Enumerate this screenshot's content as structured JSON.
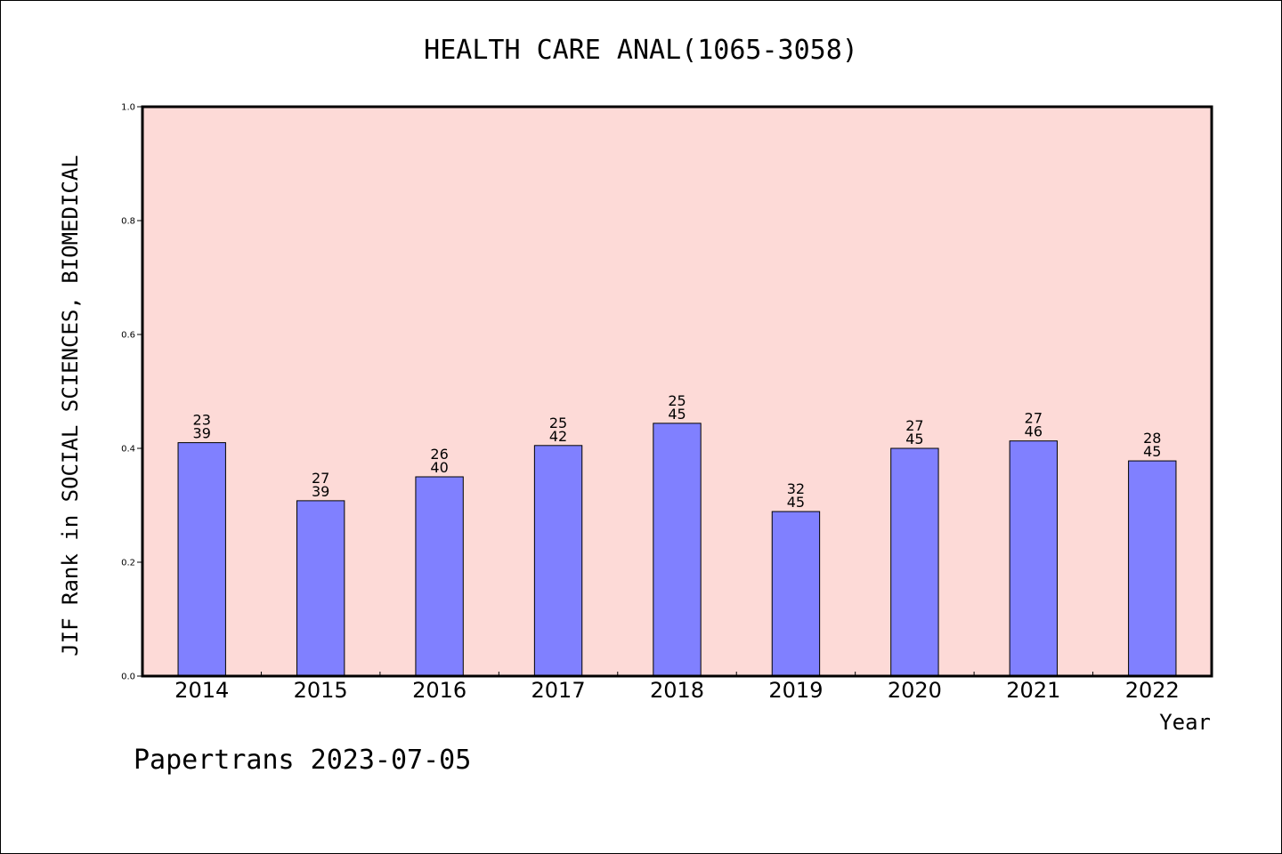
{
  "chart_data": {
    "type": "bar",
    "title": "HEALTH CARE ANAL(1065-3058)",
    "xlabel": "Year",
    "ylabel": "JIF Rank in SOCIAL SCIENCES, BIOMEDICAL",
    "ylim": [
      0,
      1.0
    ],
    "yticks": [
      "0.0",
      "0.2",
      "0.4",
      "0.6",
      "0.8",
      "1.0"
    ],
    "categories": [
      "2014",
      "2015",
      "2016",
      "2017",
      "2018",
      "2019",
      "2020",
      "2021",
      "2022"
    ],
    "values": [
      0.41,
      0.308,
      0.35,
      0.405,
      0.444,
      0.289,
      0.4,
      0.413,
      0.378
    ],
    "rank": [
      "23",
      "27",
      "26",
      "25",
      "25",
      "32",
      "27",
      "27",
      "28"
    ],
    "total": [
      "39",
      "39",
      "40",
      "42",
      "45",
      "45",
      "45",
      "46",
      "45"
    ],
    "grid": false,
    "colors": {
      "bar": "#8080ff",
      "plot_bg": "#fddad7",
      "edge": "#000000"
    }
  },
  "footer": "Papertrans 2023-07-05"
}
